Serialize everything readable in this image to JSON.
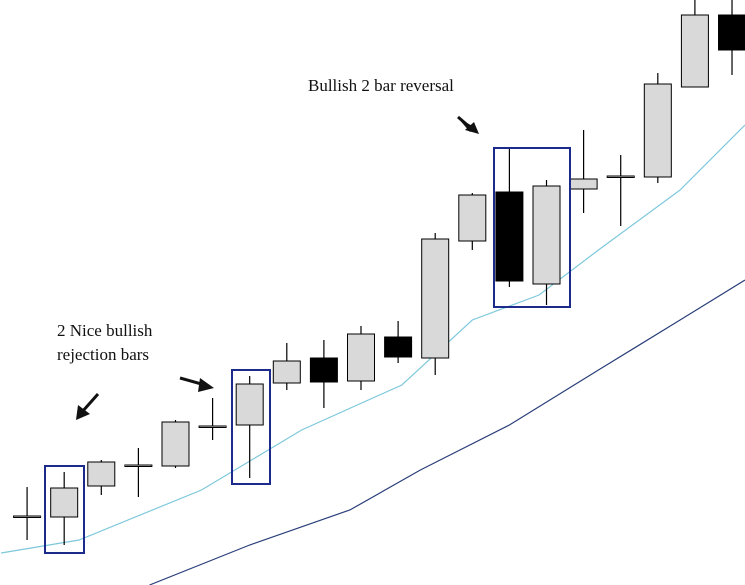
{
  "chart_data": {
    "type": "candlestick",
    "x": [
      0,
      1,
      2,
      3,
      4,
      5,
      6,
      7,
      8,
      9,
      10,
      11,
      12,
      13,
      14,
      15,
      16,
      17,
      18,
      19
    ],
    "open": [
      68,
      68,
      99,
      120,
      119,
      159,
      160,
      202,
      227,
      204,
      248,
      227,
      344,
      393,
      301,
      396,
      409,
      408,
      498,
      570
    ],
    "high": [
      98,
      113,
      125,
      137,
      165,
      187,
      209,
      242,
      245,
      259,
      264,
      352,
      392,
      436,
      405,
      455,
      430,
      512,
      585,
      585
    ],
    "low": [
      45,
      40,
      90,
      88,
      117,
      145,
      107,
      195,
      177,
      195,
      222,
      210,
      335,
      298,
      280,
      372,
      359,
      402,
      498,
      510
    ],
    "close": [
      69,
      97,
      123,
      120,
      163,
      159,
      201,
      224,
      203,
      251,
      228,
      346,
      390,
      304,
      399,
      406,
      409,
      501,
      570,
      535
    ],
    "up_color": "#d9d9d9",
    "down_color": "#000000",
    "lines": [
      {
        "color": "#7ec8dc",
        "x": [
          -0.7,
          1.4,
          4.7,
          7.4,
          10.1,
          12,
          13.8,
          15.4,
          17.6,
          19.35
        ],
        "values": [
          32,
          45,
          95,
          155,
          200,
          265,
          290,
          335,
          395,
          460
        ]
      },
      {
        "color": "#2a3f7a",
        "x": [
          3.3,
          6,
          8.7,
          10.6,
          13,
          15.4,
          17.6,
          19.35
        ],
        "values": [
          0,
          40,
          75,
          115,
          160,
          215,
          265,
          305
        ]
      }
    ],
    "xlim": [
      -0.73,
      19.35
    ],
    "ylim": [
      0,
      585
    ],
    "annotations": [
      "Bullish 2 bar reversal",
      "2 Nice bullish",
      "rejection bars"
    ]
  }
}
